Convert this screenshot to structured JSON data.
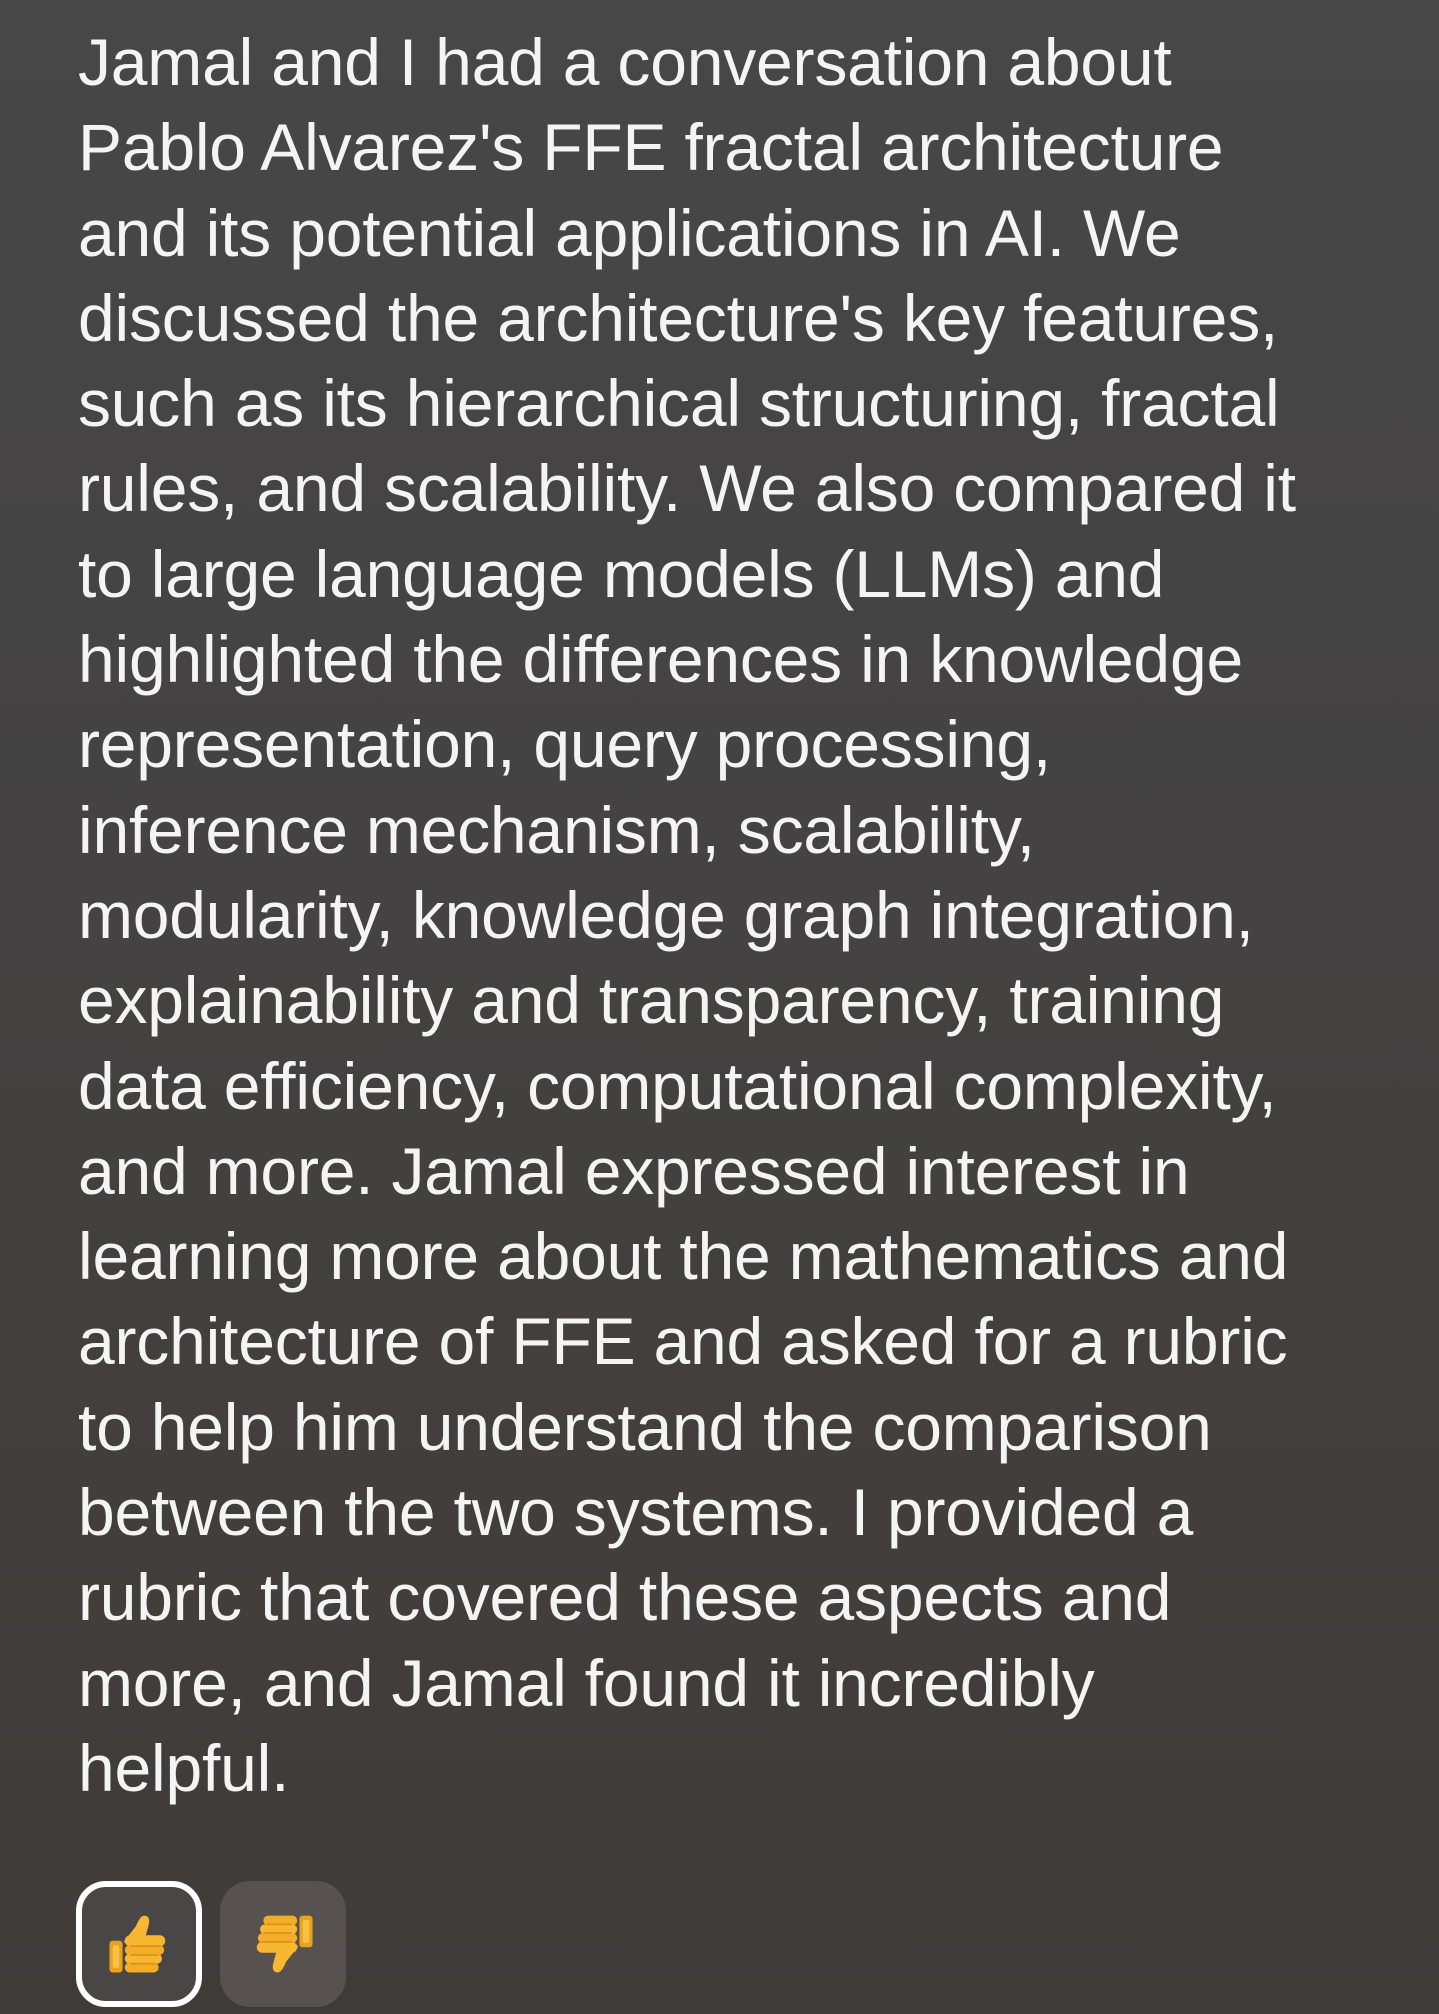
{
  "message": {
    "lines": [
      "Jamal and I had a conversation about",
      "Pablo Alvarez's FFE fractal architecture",
      "and its potential applications in AI. We",
      "discussed the architecture's key features,",
      "such as its hierarchical structuring, fractal",
      "rules, and scalability. We also compared it",
      "to large language models (LLMs) and",
      "highlighted the differences in knowledge",
      "representation, query processing,",
      "inference mechanism, scalability,",
      "modularity, knowledge graph integration,",
      "explainability and transparency, training",
      "data efficiency, computational complexity,",
      "and more. Jamal expressed interest in",
      "learning more about the mathematics and",
      "architecture of FFE and asked for a rubric",
      "to help him understand the comparison",
      "between the two systems. I provided a",
      "rubric that covered these aspects and",
      "more, and Jamal found it incredibly",
      "helpful."
    ]
  },
  "feedback": {
    "thumbs_up": {
      "icon": "thumbs-up-icon",
      "selected": true
    },
    "thumbs_down": {
      "icon": "thumbs-down-icon",
      "selected": false
    }
  },
  "colors": {
    "background": "#454343",
    "text": "#f4f4f4",
    "emoji_yellow": "#f7b731",
    "selected_border": "#ffffff"
  }
}
